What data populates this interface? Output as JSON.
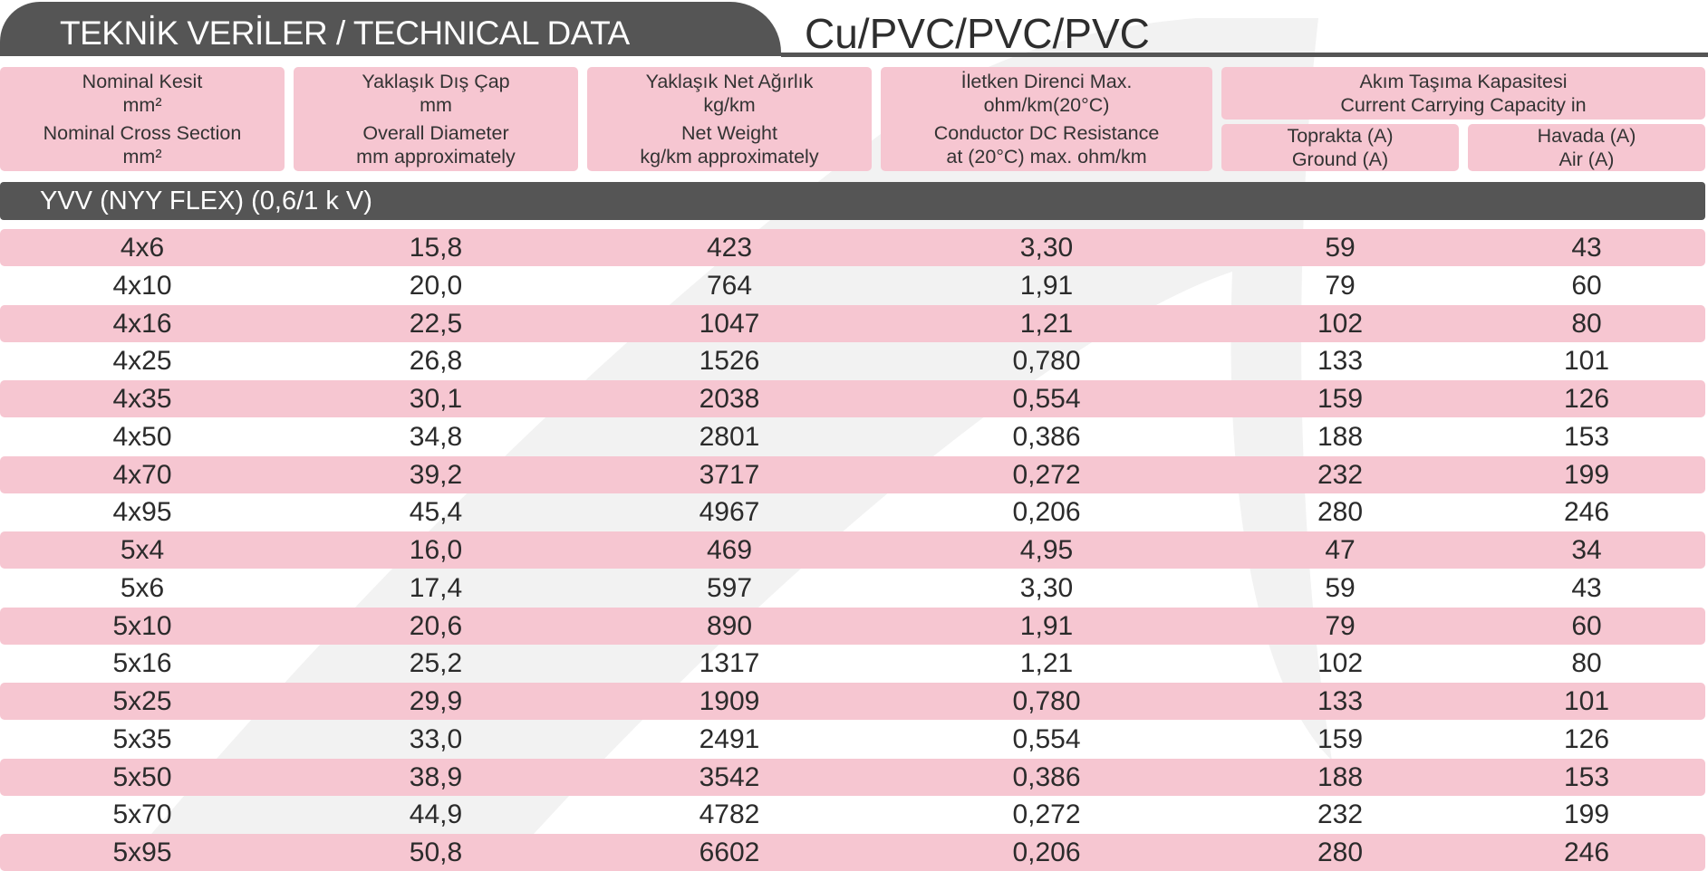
{
  "header": {
    "title": "TEKNİK  VERİLER /  TECHNICAL DATA",
    "subtitle": "Cu/PVC/PVC/PVC"
  },
  "columns": {
    "col1": {
      "tr_label": "Nominal Kesit",
      "tr_unit": "mm²",
      "en_label": "Nominal Cross Section",
      "en_unit": "mm²"
    },
    "col2": {
      "tr_label": "Yaklaşık Dış Çap",
      "tr_unit": "mm",
      "en_label": "Overall Diameter",
      "en_unit": "mm approximately"
    },
    "col3": {
      "tr_label": "Yaklaşık Net Ağırlık",
      "tr_unit": "kg/km",
      "en_label": "Net Weight",
      "en_unit": "kg/km approximately"
    },
    "col4": {
      "tr_label": "İletken Direnci Max.",
      "tr_unit": "ohm/km(20°C)",
      "en_label": "Conductor DC Resistance",
      "en_unit": "at (20°C) max. ohm/km"
    },
    "col5": {
      "group_tr": "Akım Taşıma Kapasitesi",
      "group_en": "Current Carrying Capacity in",
      "ground_tr": "Toprakta (A)",
      "ground_en": "Ground (A)",
      "air_tr": "Havada (A)",
      "air_en": "Air (A)"
    }
  },
  "section": {
    "label": "YVV (NYY FLEX) (0,6/1 k V)"
  },
  "rows": [
    [
      "4x6",
      "15,8",
      "423",
      "3,30",
      "59",
      "43"
    ],
    [
      "4x10",
      "20,0",
      "764",
      "1,91",
      "79",
      "60"
    ],
    [
      "4x16",
      "22,5",
      "1047",
      "1,21",
      "102",
      "80"
    ],
    [
      "4x25",
      "26,8",
      "1526",
      "0,780",
      "133",
      "101"
    ],
    [
      "4x35",
      "30,1",
      "2038",
      "0,554",
      "159",
      "126"
    ],
    [
      "4x50",
      "34,8",
      "2801",
      "0,386",
      "188",
      "153"
    ],
    [
      "4x70",
      "39,2",
      "3717",
      "0,272",
      "232",
      "199"
    ],
    [
      "4x95",
      "45,4",
      "4967",
      "0,206",
      "280",
      "246"
    ],
    [
      "5x4",
      "16,0",
      "469",
      "4,95",
      "47",
      "34"
    ],
    [
      "5x6",
      "17,4",
      "597",
      "3,30",
      "59",
      "43"
    ],
    [
      "5x10",
      "20,6",
      "890",
      "1,91",
      "79",
      "60"
    ],
    [
      "5x16",
      "25,2",
      "1317",
      "1,21",
      "102",
      "80"
    ],
    [
      "5x25",
      "29,9",
      "1909",
      "0,780",
      "133",
      "101"
    ],
    [
      "5x35",
      "33,0",
      "2491",
      "0,554",
      "159",
      "126"
    ],
    [
      "5x50",
      "38,9",
      "3542",
      "0,386",
      "188",
      "153"
    ],
    [
      "5x70",
      "44,9",
      "4782",
      "0,272",
      "232",
      "199"
    ],
    [
      "5x95",
      "50,8",
      "6602",
      "0,206",
      "280",
      "246"
    ]
  ],
  "colors": {
    "header_gray": "#555555",
    "row_pink": "#f6c6d1",
    "watermark": "#f2f2f2"
  }
}
